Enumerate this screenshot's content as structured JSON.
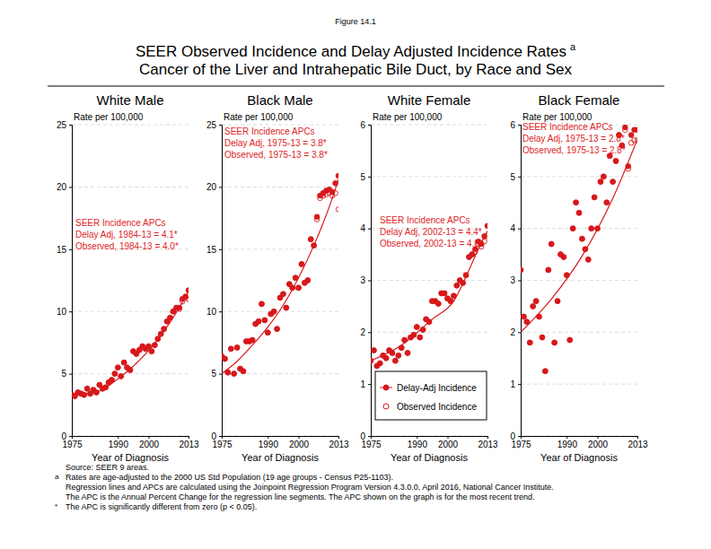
{
  "figure_label": "Figure 14.1",
  "title": [
    "SEER Observed Incidence and Delay Adjusted Incidence Rates",
    "Cancer of the Liver and Intrahepatic Bile Duct, by Race and Sex"
  ],
  "title_superscript": "a",
  "footnotes": [
    {
      "marker": null,
      "text": "Source: SEER 9 areas."
    },
    {
      "marker": "a",
      "text": "Rates are age-adjusted to the 2000 US Std Population (19 age groups - Census P25-1103)."
    },
    {
      "marker": null,
      "text": "Regression lines and APCs are calculated using the Joinpoint Regression Program Version 4.3.0.0, April 2016, National Cancer Institute."
    },
    {
      "marker": null,
      "text": "The APC is the Annual Percent Change for the regression line segments. The APC shown on the graph is for the most recent trend."
    },
    {
      "marker": "*",
      "text": "The APC is significantly different from zero (p < 0.05)."
    }
  ],
  "chart_data": [
    {
      "type": "scatter",
      "title": "White Male",
      "xlabel": "Year of Diagnosis",
      "ylabel": "Rate per 100,000",
      "grid": true,
      "xlim": [
        1975,
        2013
      ],
      "xticks": [
        1975,
        1990,
        2000,
        2013
      ],
      "ylim": [
        0,
        25
      ],
      "yticks": [
        0,
        5,
        10,
        15,
        20,
        25
      ],
      "annotations": [
        "SEER Incidence APCs",
        "Delay Adj, 1984-13 = 4.1*",
        "Observed, 1984-13 = 4.0*"
      ],
      "x": [
        1975,
        1976,
        1977,
        1978,
        1979,
        1980,
        1981,
        1982,
        1983,
        1984,
        1985,
        1986,
        1987,
        1988,
        1989,
        1990,
        1991,
        1992,
        1993,
        1994,
        1995,
        1996,
        1997,
        1998,
        1999,
        2000,
        2001,
        2002,
        2003,
        2004,
        2005,
        2006,
        2007,
        2008,
        2009,
        2010,
        2011,
        2012,
        2013
      ],
      "series": [
        {
          "name": "Delay-Adj Incidence",
          "color": "#d7191c",
          "marker": "filled-circle",
          "values": [
            3.3,
            3.2,
            3.5,
            3.4,
            3.3,
            3.8,
            3.4,
            3.7,
            3.5,
            4.1,
            3.8,
            3.9,
            4.3,
            4.5,
            5.0,
            5.5,
            4.8,
            5.9,
            5.5,
            5.3,
            6.8,
            6.6,
            6.9,
            7.2,
            7.0,
            7.2,
            6.8,
            7.3,
            7.8,
            8.2,
            8.6,
            9.2,
            9.5,
            10.0,
            10.3,
            10.3,
            11.0,
            11.2,
            11.7
          ]
        },
        {
          "name": "Observed Incidence",
          "color": "#d7191c",
          "marker": "open-circle",
          "values": [
            3.3,
            3.2,
            3.5,
            3.4,
            3.3,
            3.8,
            3.4,
            3.7,
            3.5,
            4.1,
            3.8,
            3.9,
            4.3,
            4.5,
            5.0,
            5.5,
            4.8,
            5.9,
            5.5,
            5.3,
            6.8,
            6.6,
            6.9,
            7.2,
            7.0,
            7.2,
            6.8,
            7.3,
            7.8,
            8.2,
            8.6,
            9.2,
            9.5,
            10.0,
            10.2,
            10.2,
            10.8,
            11.1,
            11.0
          ]
        },
        {
          "type": "line",
          "color": "#d7191c",
          "x": [
            1975,
            1984,
            1990,
            1995,
            2000,
            2005,
            2010,
            2013
          ],
          "values": [
            3.3,
            3.6,
            4.6,
            5.6,
            6.85,
            8.4,
            10.3,
            11.6
          ]
        }
      ]
    },
    {
      "type": "scatter",
      "title": "Black Male",
      "xlabel": "Year of Diagnosis",
      "ylabel": "Rate per 100,000",
      "grid": true,
      "xlim": [
        1975,
        2013
      ],
      "xticks": [
        1975,
        1990,
        2000,
        2013
      ],
      "ylim": [
        0,
        25
      ],
      "yticks": [
        0,
        5,
        10,
        15,
        20,
        25
      ],
      "annotations": [
        "SEER Incidence APCs",
        "Delay Adj, 1975-13 = 3.8*",
        "Observed, 1975-13 = 3.8*"
      ],
      "x": [
        1975,
        1976,
        1977,
        1978,
        1979,
        1980,
        1981,
        1982,
        1983,
        1984,
        1985,
        1986,
        1987,
        1988,
        1989,
        1990,
        1991,
        1992,
        1993,
        1994,
        1995,
        1996,
        1997,
        1998,
        1999,
        2000,
        2001,
        2002,
        2003,
        2004,
        2005,
        2006,
        2007,
        2008,
        2009,
        2010,
        2011,
        2012,
        2013
      ],
      "series": [
        {
          "name": "Delay-Adj Incidence",
          "color": "#d7191c",
          "marker": "filled-circle",
          "values": [
            6.4,
            6.2,
            5.1,
            7.0,
            5.0,
            7.1,
            5.4,
            5.2,
            7.6,
            7.6,
            7.7,
            9.0,
            9.2,
            10.6,
            9.3,
            8.3,
            9.8,
            10.0,
            8.6,
            11.1,
            11.4,
            10.3,
            12.2,
            11.9,
            12.7,
            11.9,
            13.8,
            12.3,
            12.5,
            15.8,
            15.3,
            17.6,
            19.3,
            19.5,
            19.7,
            19.8,
            19.6,
            20.3,
            20.9
          ]
        },
        {
          "name": "Observed Incidence",
          "color": "#d7191c",
          "marker": "open-circle",
          "values": [
            6.4,
            6.2,
            5.1,
            7.0,
            5.0,
            7.1,
            5.4,
            5.2,
            7.6,
            7.6,
            7.7,
            9.0,
            9.2,
            10.6,
            9.3,
            8.3,
            9.8,
            10.0,
            8.6,
            11.1,
            11.4,
            10.3,
            12.2,
            11.9,
            12.7,
            11.9,
            13.8,
            12.3,
            12.5,
            15.8,
            15.3,
            17.4,
            19.1,
            19.3,
            19.4,
            19.5,
            19.3,
            19.5,
            18.2
          ]
        },
        {
          "type": "line",
          "color": "#d7191c",
          "x": [
            1975,
            1980,
            1985,
            1990,
            1995,
            2000,
            2005,
            2010,
            2013
          ],
          "values": [
            5.0,
            6.0,
            7.3,
            8.75,
            10.5,
            12.7,
            15.3,
            18.4,
            20.6
          ]
        }
      ]
    },
    {
      "type": "scatter",
      "title": "White Female",
      "xlabel": "Year of Diagnosis",
      "ylabel": "Rate per 100,000",
      "grid": true,
      "legend": "lower right",
      "xlim": [
        1975,
        2013
      ],
      "xticks": [
        1975,
        1990,
        2000,
        2013
      ],
      "ylim": [
        0,
        6
      ],
      "yticks": [
        0,
        1,
        2,
        3,
        4,
        5,
        6
      ],
      "annotations": [
        "SEER Incidence APCs",
        "Delay Adj, 2002-13 = 4.4*",
        "Observed, 2002-13 = 4.0*"
      ],
      "x": [
        1975,
        1976,
        1977,
        1978,
        1979,
        1980,
        1981,
        1982,
        1983,
        1984,
        1985,
        1986,
        1987,
        1988,
        1989,
        1990,
        1991,
        1992,
        1993,
        1994,
        1995,
        1996,
        1997,
        1998,
        1999,
        2000,
        2001,
        2002,
        2003,
        2004,
        2005,
        2006,
        2007,
        2008,
        2009,
        2010,
        2011,
        2012,
        2013
      ],
      "series": [
        {
          "name": "Delay-Adj Incidence",
          "color": "#d7191c",
          "marker": "filled-circle",
          "values": [
            1.45,
            1.65,
            1.35,
            1.4,
            1.55,
            1.5,
            1.65,
            1.6,
            1.45,
            1.55,
            1.7,
            1.85,
            1.6,
            1.9,
            1.95,
            2.1,
            1.9,
            2.05,
            2.25,
            2.2,
            2.6,
            2.6,
            2.55,
            2.75,
            2.75,
            2.65,
            2.6,
            2.7,
            2.9,
            3.0,
            2.95,
            3.1,
            3.45,
            3.5,
            3.6,
            3.75,
            3.7,
            3.85,
            4.05
          ]
        },
        {
          "name": "Observed Incidence",
          "color": "#d7191c",
          "marker": "open-circle",
          "values": [
            1.45,
            1.65,
            1.35,
            1.4,
            1.55,
            1.5,
            1.65,
            1.6,
            1.45,
            1.55,
            1.7,
            1.85,
            1.6,
            1.9,
            1.95,
            2.1,
            1.9,
            2.05,
            2.25,
            2.2,
            2.6,
            2.6,
            2.55,
            2.75,
            2.75,
            2.65,
            2.6,
            2.7,
            2.9,
            3.0,
            2.95,
            3.1,
            3.45,
            3.5,
            3.55,
            3.7,
            3.65,
            3.75,
            3.85
          ]
        },
        {
          "type": "line",
          "color": "#d7191c",
          "x": [
            1975,
            1985,
            1995,
            2002,
            2007,
            2010,
            2013
          ],
          "values": [
            1.45,
            1.75,
            2.25,
            2.6,
            3.2,
            3.6,
            3.95
          ]
        }
      ]
    },
    {
      "type": "scatter",
      "title": "Black Female",
      "xlabel": "Year of Diagnosis",
      "ylabel": "Rate per 100,000",
      "grid": true,
      "xlim": [
        1975,
        2013
      ],
      "xticks": [
        1975,
        1990,
        2000,
        2013
      ],
      "ylim": [
        0,
        6
      ],
      "yticks": [
        0,
        1,
        2,
        3,
        4,
        5,
        6
      ],
      "annotations": [
        "SEER Incidence APCs",
        "Delay Adj, 1975-13 = 2.8*",
        "Observed, 1975-13 = 2.8*"
      ],
      "x": [
        1975,
        1976,
        1977,
        1978,
        1979,
        1980,
        1981,
        1982,
        1983,
        1984,
        1985,
        1986,
        1987,
        1988,
        1989,
        1990,
        1991,
        1992,
        1993,
        1994,
        1995,
        1996,
        1997,
        1998,
        1999,
        2000,
        2001,
        2002,
        2003,
        2004,
        2005,
        2006,
        2007,
        2008,
        2009,
        2010,
        2011,
        2012,
        2013
      ],
      "series": [
        {
          "name": "Delay-Adj Incidence",
          "color": "#d7191c",
          "marker": "filled-circle",
          "values": [
            3.2,
            2.3,
            2.2,
            1.8,
            2.5,
            2.6,
            2.3,
            1.9,
            1.25,
            3.2,
            3.7,
            1.8,
            2.6,
            3.5,
            3.45,
            3.1,
            1.85,
            4.0,
            4.5,
            4.3,
            3.8,
            3.6,
            3.4,
            4.0,
            4.6,
            4.0,
            4.9,
            5.0,
            4.5,
            5.4,
            4.9,
            5.3,
            5.8,
            5.6,
            5.95,
            5.2,
            5.8,
            5.9,
            5.9
          ]
        },
        {
          "name": "Observed Incidence",
          "color": "#d7191c",
          "marker": "open-circle",
          "values": [
            3.2,
            2.3,
            2.2,
            1.8,
            2.5,
            2.6,
            2.3,
            1.9,
            1.25,
            3.2,
            3.7,
            1.8,
            2.6,
            3.5,
            3.45,
            3.1,
            1.85,
            4.0,
            4.5,
            4.3,
            3.8,
            3.6,
            3.4,
            4.0,
            4.6,
            4.0,
            4.9,
            5.0,
            4.5,
            5.4,
            4.9,
            5.3,
            5.8,
            5.6,
            5.9,
            5.15,
            5.65,
            5.7,
            5.7
          ]
        },
        {
          "type": "line",
          "color": "#d7191c",
          "x": [
            1975,
            1985,
            1995,
            2005,
            2013
          ],
          "values": [
            2.0,
            2.64,
            3.47,
            4.58,
            5.72
          ]
        }
      ]
    }
  ]
}
